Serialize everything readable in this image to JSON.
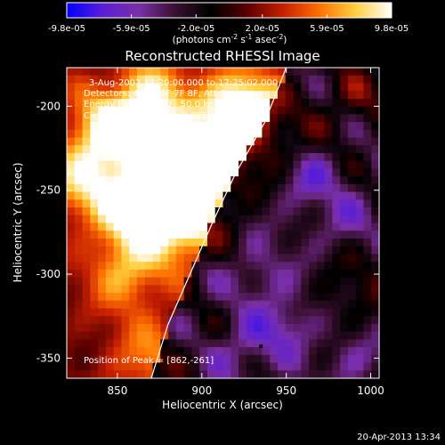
{
  "colorbar": {
    "tick_labels": [
      "-9.8e-05",
      "-5.9e-05",
      "-2.0e-05",
      "2.0e-05",
      "5.9e-05",
      "9.8e-05"
    ],
    "tick_values": [
      -9.8e-05,
      -5.9e-05,
      -2e-05,
      2e-05,
      5.9e-05,
      9.8e-05
    ],
    "range": [
      -9.8e-05,
      9.8e-05
    ],
    "unit_main": "(photons cm",
    "unit_exp1": "-2",
    "unit_mid": " s",
    "unit_exp2": "-1",
    "unit_mid2": " asec",
    "unit_exp3": "-2",
    "unit_close": ")",
    "colors": [
      "#0000ff",
      "#5a1ed8",
      "#7a2fa8",
      "#3a1030",
      "#000000",
      "#5a0000",
      "#c82000",
      "#ff7000",
      "#ffd040",
      "#ffffff"
    ]
  },
  "chart_data": {
    "type": "heatmap",
    "title": "Reconstructed RHESSI Image",
    "xlabel": "Heliocentric X (arcsec)",
    "ylabel": "Heliocentric Y (arcsec)",
    "xlim": [
      820,
      1005
    ],
    "ylim": [
      -362,
      -177
    ],
    "x_ticks": [
      850,
      900,
      950,
      1000
    ],
    "x_tick_labels": [
      "850",
      "900",
      "950",
      "1000"
    ],
    "y_ticks": [
      -200,
      -250,
      -300,
      -350
    ],
    "y_tick_labels": [
      "-200",
      "-250",
      "-300",
      "-350"
    ],
    "annotations": [
      "3-Aug-2002 17:20:00.000 to 17:25:02.000",
      "Detectors: 4F 5F 6F 7F 8F, Att 0",
      "Energy Range: 25.0 - 50.0 keV",
      "Clean     Total counts: 2.88E+03"
    ],
    "peak_label": "Position of Peak = [862,-261]",
    "peak": [
      862,
      -261
    ],
    "limb_curve": [
      [
        870,
        -362
      ],
      [
        880,
        -330
      ],
      [
        893,
        -300
      ],
      [
        906,
        -270
      ],
      [
        920,
        -240
      ],
      [
        937,
        -210
      ],
      [
        950,
        -177
      ]
    ],
    "bright_blobs": [
      {
        "x": 845,
        "y": -215,
        "v": 0.85
      },
      {
        "x": 862,
        "y": -261,
        "v": 1.0
      },
      {
        "x": 880,
        "y": -230,
        "v": 0.9
      },
      {
        "x": 905,
        "y": -240,
        "v": 0.95
      },
      {
        "x": 935,
        "y": -215,
        "v": 0.9
      },
      {
        "x": 920,
        "y": -200,
        "v": 0.8
      },
      {
        "x": 855,
        "y": -300,
        "v": 0.55
      },
      {
        "x": 830,
        "y": -245,
        "v": 0.6
      },
      {
        "x": 890,
        "y": -270,
        "v": 0.85
      },
      {
        "x": 870,
        "y": -195,
        "v": 0.7
      },
      {
        "x": 990,
        "y": -310,
        "v": 0.55
      },
      {
        "x": 1000,
        "y": -190,
        "v": 0.4
      },
      {
        "x": 870,
        "y": -350,
        "v": 0.45
      },
      {
        "x": 980,
        "y": -200,
        "v": 0.35
      }
    ],
    "dark_blobs": [
      {
        "x": 965,
        "y": -245,
        "v": -0.7
      },
      {
        "x": 950,
        "y": -330,
        "v": -0.8
      },
      {
        "x": 935,
        "y": -300,
        "v": -0.6
      },
      {
        "x": 985,
        "y": -270,
        "v": -0.5
      },
      {
        "x": 925,
        "y": -345,
        "v": -0.7
      },
      {
        "x": 990,
        "y": -350,
        "v": -0.5
      }
    ]
  },
  "timestamp": "20-Apr-2013 13:34"
}
